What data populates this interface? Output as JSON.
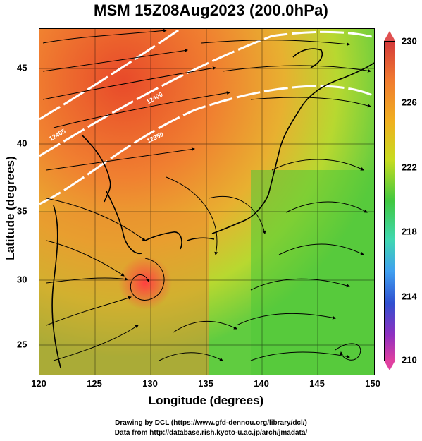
{
  "title": "MSM 15Z08Aug2023 (200.0hPa)",
  "x_axis": {
    "label": "Longitude (degrees)",
    "ticks": [
      "120",
      "125",
      "130",
      "135",
      "140",
      "145",
      "150"
    ]
  },
  "y_axis": {
    "label": "Latitude  (degrees)",
    "ticks": [
      "25",
      "30",
      "35",
      "40",
      "45"
    ]
  },
  "colorbar": {
    "ticks": [
      "230",
      "226",
      "222",
      "218",
      "214",
      "210"
    ]
  },
  "contours": [
    {
      "label": "12405"
    },
    {
      "label": "12400"
    },
    {
      "label": "12350"
    }
  ],
  "credits": [
    "Drawing by DCL (https://www.gfd-dennou.org/library/dcl/)",
    "Data from http://database.rish.kyoto-u.ac.jp/arch/jmadata/"
  ],
  "colors": {
    "warm": "#e8602a",
    "mid": "#c8dc30",
    "cool": "#40c040",
    "contour": "#ffffff"
  }
}
